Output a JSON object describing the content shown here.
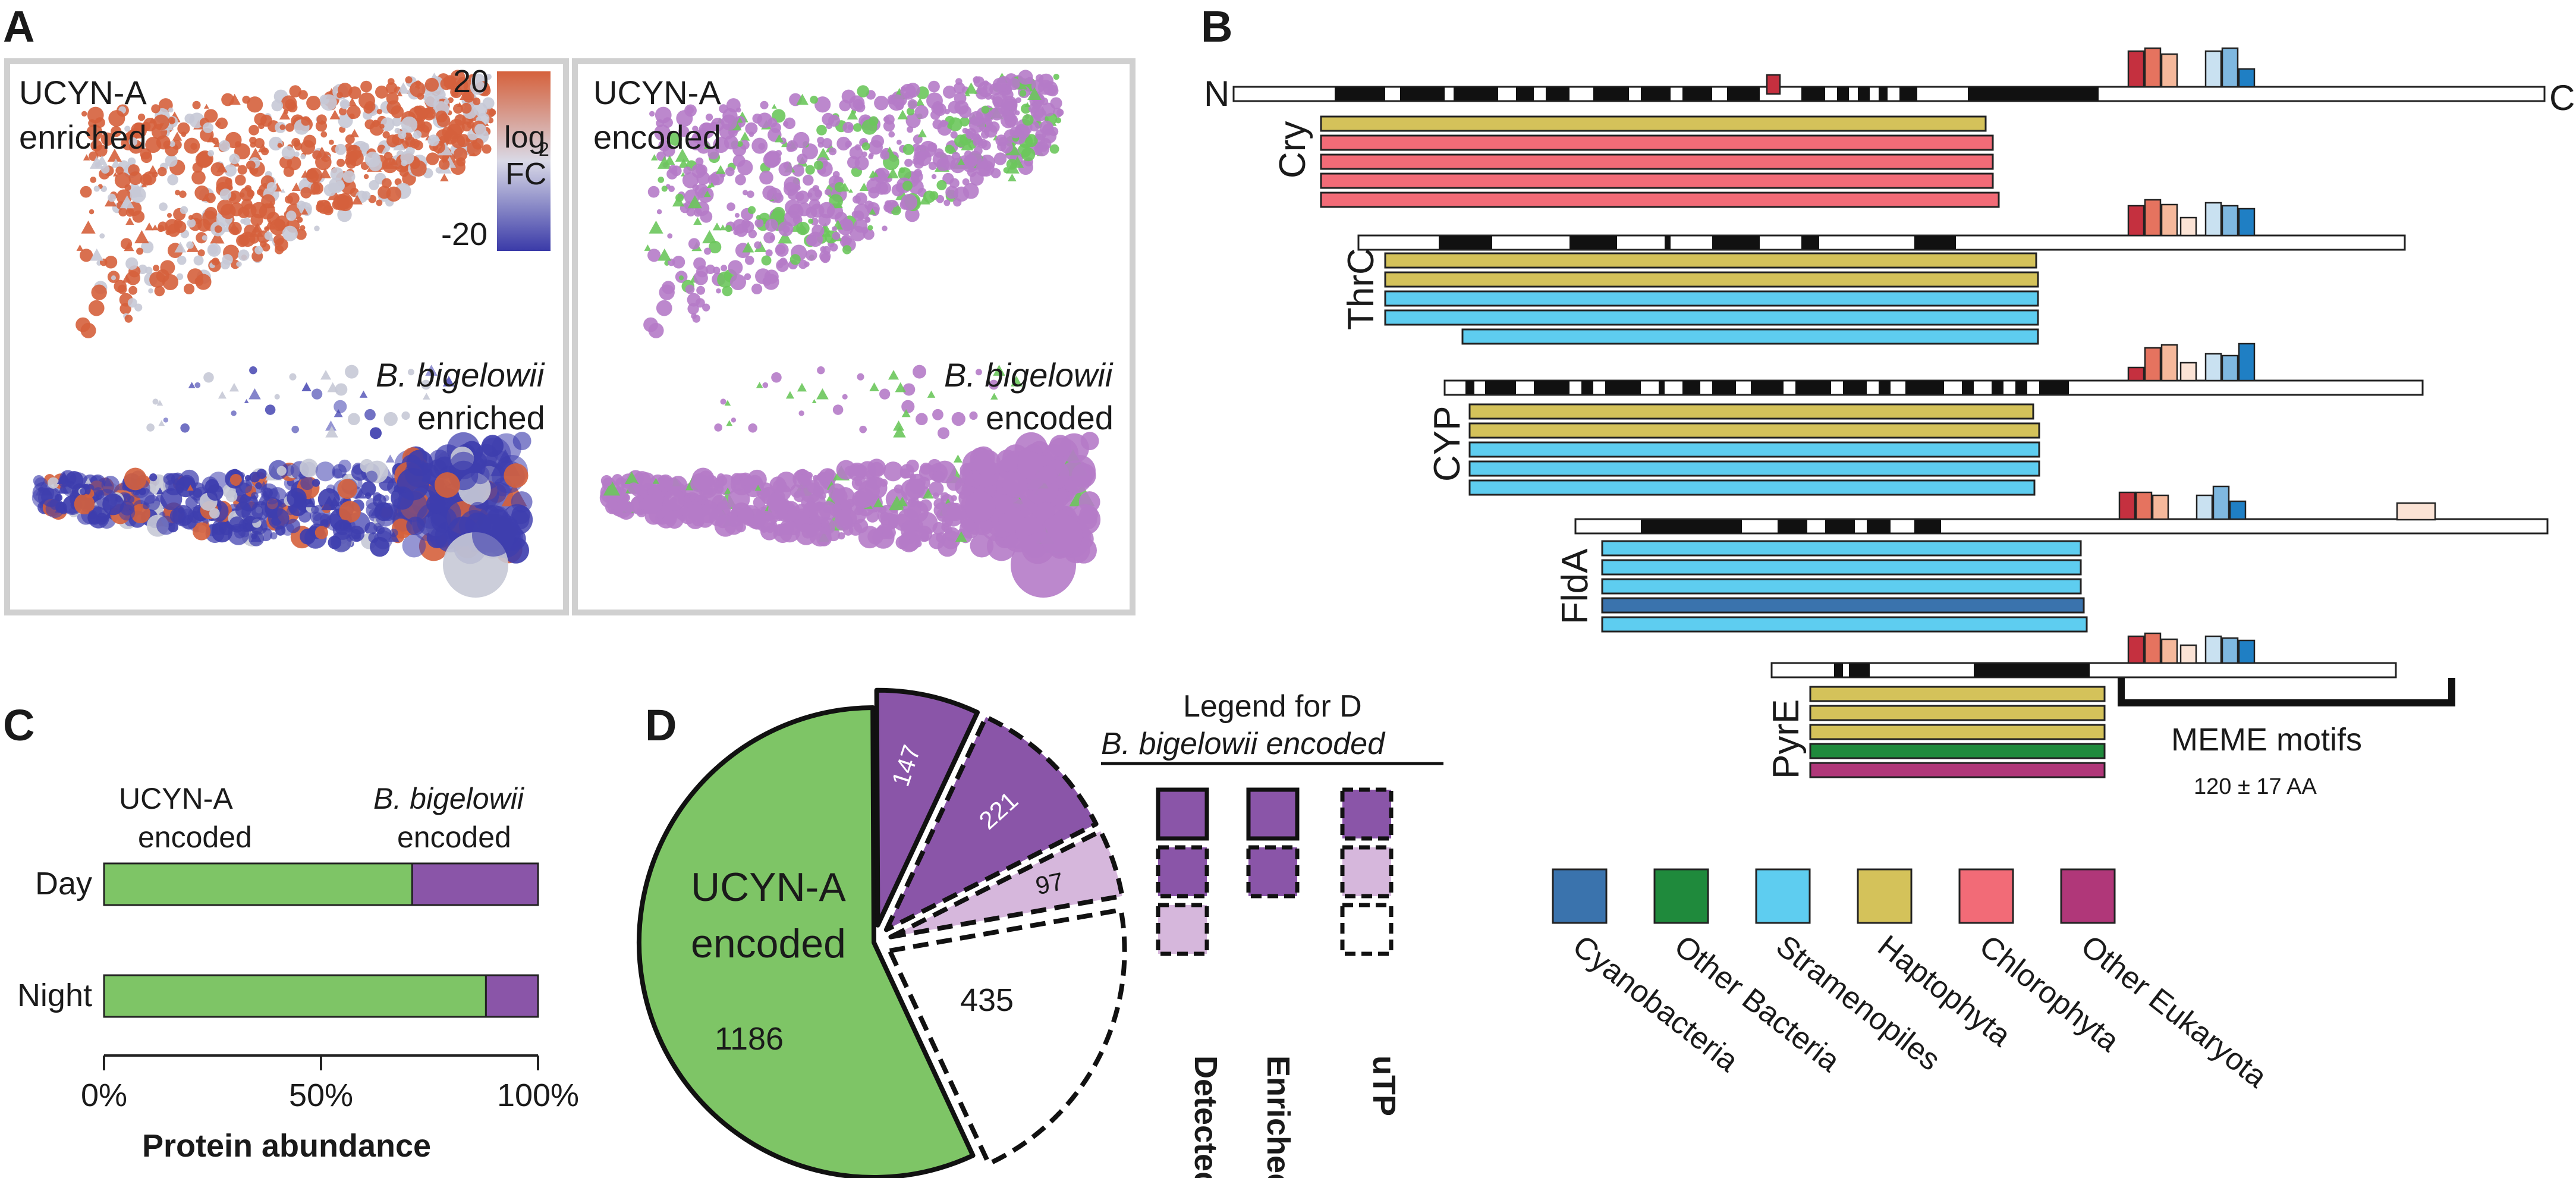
{
  "panels": {
    "a": "A",
    "b": "B",
    "c": "C",
    "d": "D"
  },
  "panel_a": {
    "left": {
      "top_label": [
        "UCYN-A",
        "enriched"
      ],
      "bottom_label": [
        "B. bigelowii",
        "enriched"
      ],
      "colorbar": {
        "max": "20",
        "min": "-20",
        "label": [
          "log",
          "2",
          "FC"
        ],
        "colors": [
          "#d5613c",
          "#d9d9e6",
          "#3a3aa8"
        ]
      }
    },
    "right": {
      "top_label": [
        "UCYN-A",
        "encoded"
      ],
      "bottom_label": [
        "B. bigelowii",
        "encoded"
      ]
    },
    "colors": {
      "ucyn_enriched": "#d5613c",
      "bb_enriched": "#3e3eae",
      "neutral": "#c6c9d6",
      "ucyn_encoded": "#6cc65c",
      "bb_encoded": "#b57bc8"
    }
  },
  "panel_b": {
    "n_label": "N",
    "c_label": "C",
    "proteins": [
      {
        "name": "Cry",
        "bar_colors": [
          "haptophyta",
          "chlorophyta",
          "chlorophyta",
          "chlorophyta",
          "chlorophyta"
        ]
      },
      {
        "name": "ThrC",
        "bar_colors": [
          "haptophyta",
          "haptophyta",
          "stramenopiles",
          "stramenopiles",
          "stramenopiles"
        ]
      },
      {
        "name": "CYP",
        "bar_colors": [
          "haptophyta",
          "haptophyta",
          "stramenopiles",
          "stramenopiles",
          "stramenopiles"
        ]
      },
      {
        "name": "FldA",
        "bar_colors": [
          "stramenopiles",
          "stramenopiles",
          "stramenopiles",
          "cyanobacteria",
          "stramenopiles"
        ]
      },
      {
        "name": "PyrE",
        "bar_colors": [
          "haptophyta",
          "haptophyta",
          "haptophyta",
          "other_bacteria",
          "other_eukaryota"
        ]
      }
    ],
    "meme_label": "MEME motifs",
    "meme_sub": "120 ± 17 AA",
    "legend": [
      {
        "key": "cyanobacteria",
        "label": "Cyanobacteria",
        "color": "#3a73ad"
      },
      {
        "key": "other_bacteria",
        "label": "Other Bacteria",
        "color": "#1f8a3c"
      },
      {
        "key": "stramenopiles",
        "label": "Stramenopiles",
        "color": "#5ecdf0"
      },
      {
        "key": "haptophyta",
        "label": "Haptophyta",
        "color": "#d4c25a"
      },
      {
        "key": "chlorophyta",
        "label": "Chlorophyta",
        "color": "#f26b77"
      },
      {
        "key": "other_eukaryota",
        "label": "Other Eukaryota",
        "color": "#b03779"
      }
    ],
    "motif_colors": [
      "#c5303f",
      "#e5735f",
      "#f5b89b",
      "#fbe3d5",
      "#c9e1f1",
      "#7fb8e0",
      "#1f7fc4"
    ]
  },
  "chart_data": [
    {
      "type": "bar",
      "stacked": true,
      "orientation": "horizontal",
      "categories": [
        "Day",
        "Night"
      ],
      "series": [
        {
          "name": "UCYN-A encoded",
          "values": [
            71,
            88
          ]
        },
        {
          "name": "B. bigelowii encoded",
          "values": [
            29,
            12
          ]
        }
      ],
      "xlabel": "Protein abundance",
      "ticks": [
        "0%",
        "50%",
        "100%"
      ],
      "xlim": [
        0,
        100
      ],
      "series_labels": [
        [
          "UCYN-A",
          "encoded"
        ],
        [
          "B. bigelowii",
          "encoded"
        ]
      ],
      "colors": [
        "#7ec566",
        "#8a55a8"
      ]
    },
    {
      "type": "pie",
      "slices": [
        {
          "label": "UCYN-A encoded",
          "value": 1186,
          "color": "#7ec566"
        },
        {
          "label": "Detected Enriched uTP",
          "value": 147,
          "color": "#8a55a8"
        },
        {
          "label": "Enriched uTP",
          "value": 221,
          "color": "#8a55a8"
        },
        {
          "label": "Detected uTP",
          "value": 97,
          "color": "#d6b7dc"
        },
        {
          "label": "uTP",
          "value": 435,
          "color": "#ffffff"
        }
      ],
      "center_label": [
        "UCYN-A",
        "encoded"
      ],
      "legend_title": [
        "Legend for D",
        "B. bigelowii encoded"
      ],
      "legend_columns": [
        "Detected",
        "Enriched",
        "uTP"
      ]
    }
  ]
}
